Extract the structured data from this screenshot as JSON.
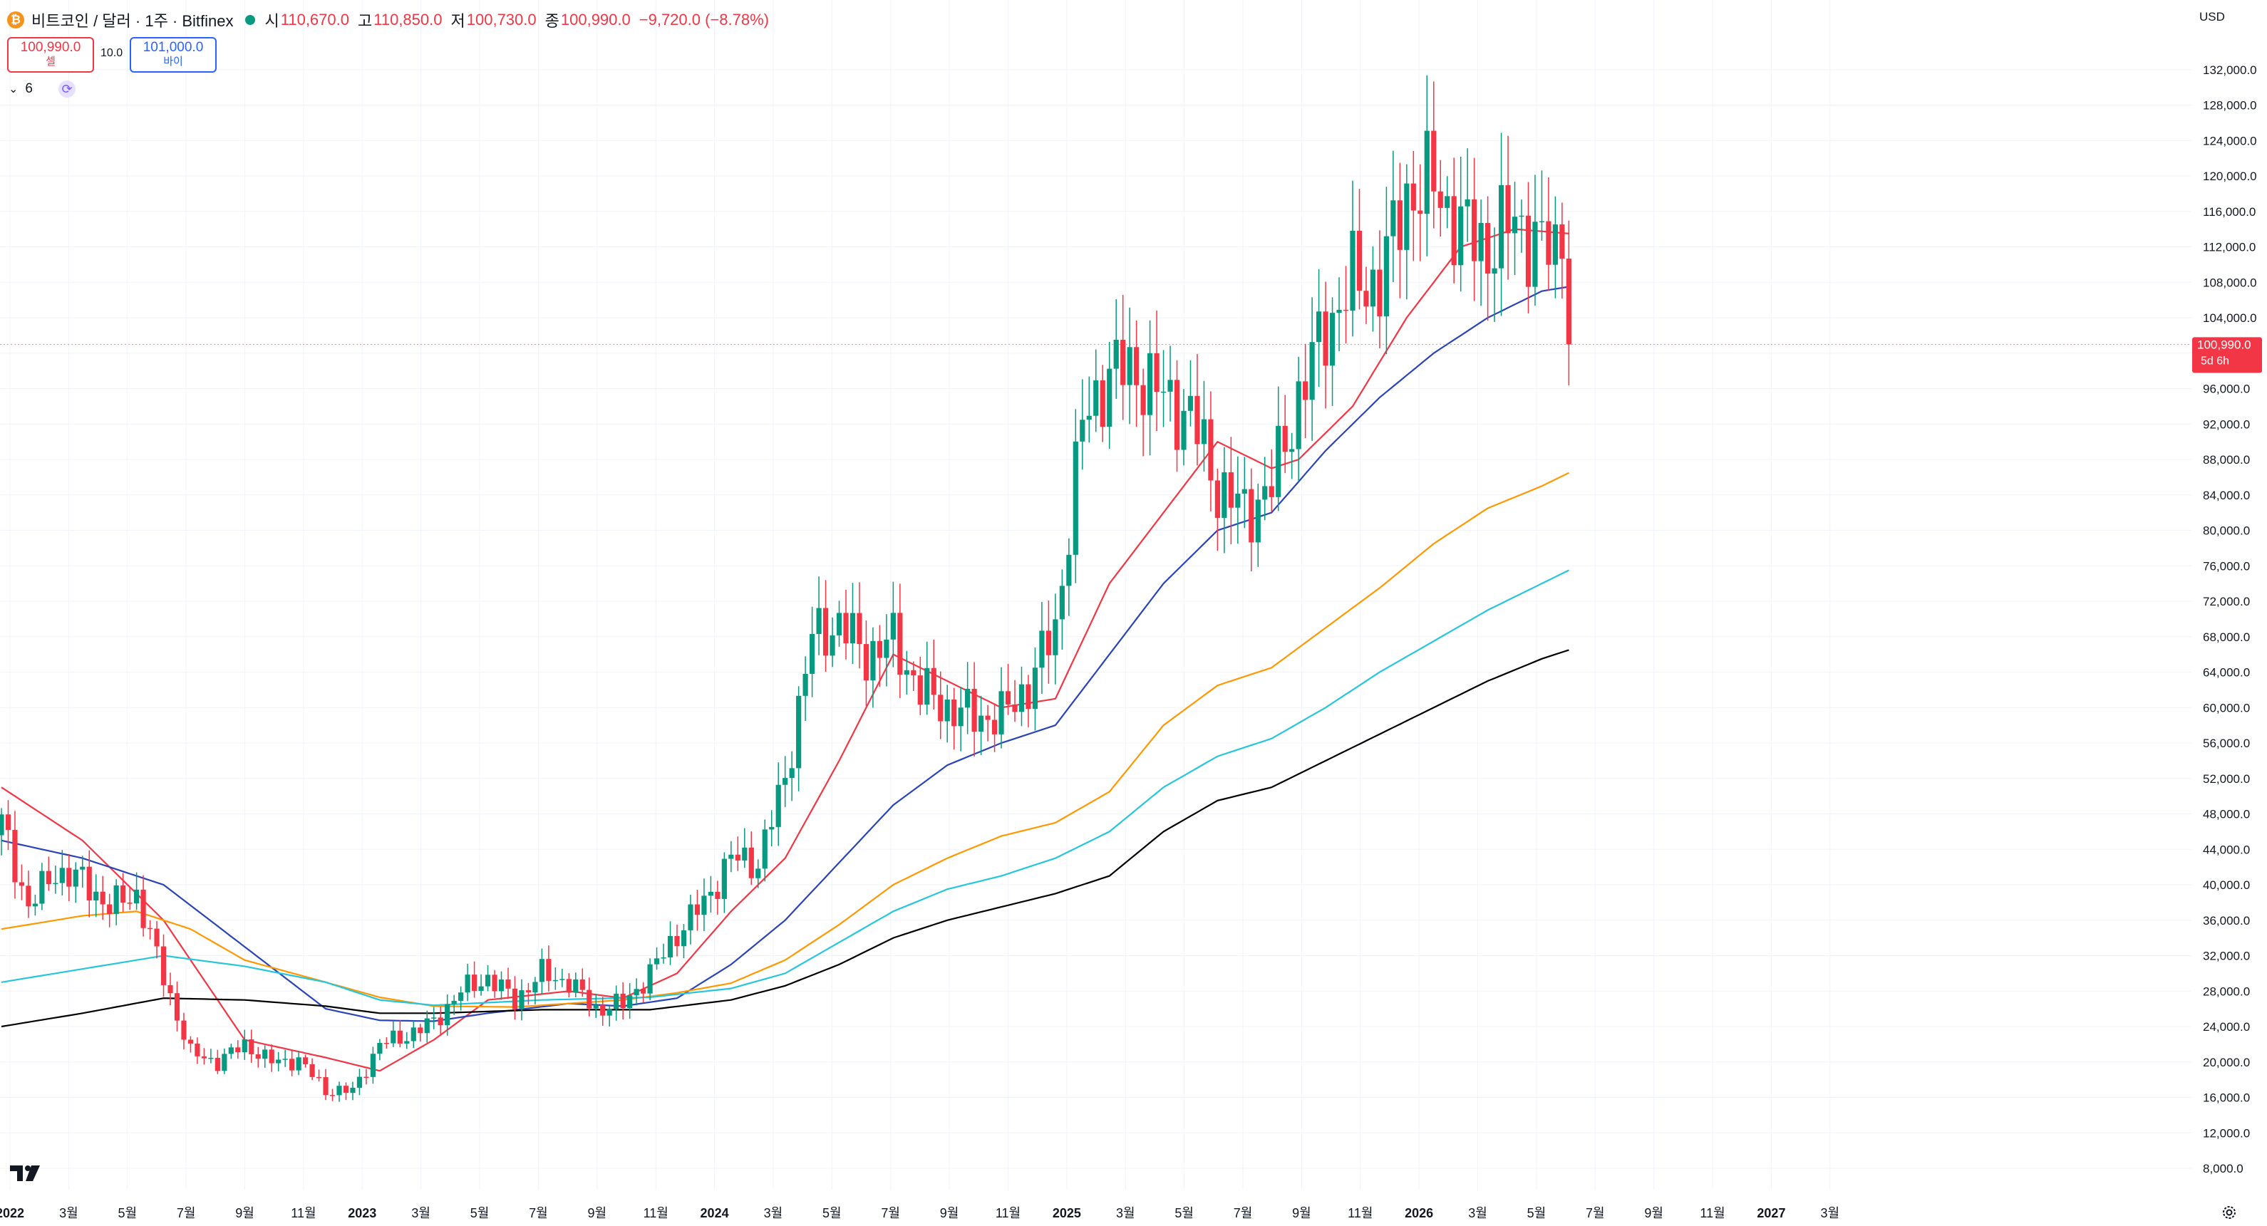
{
  "header": {
    "symbol": "비트코인 / 달러 · 1주 · Bitfinex",
    "open_label": "시",
    "open": "110,670.0",
    "high_label": "고",
    "high": "110,850.0",
    "low_label": "저",
    "low": "100,730.0",
    "close_label": "종",
    "close": "100,990.0",
    "change": "−9,720.0 (−8.78%)"
  },
  "trade": {
    "sell_price": "100,990.0",
    "sell_label": "셀",
    "spread": "10.0",
    "buy_price": "101,000.0",
    "buy_label": "바이"
  },
  "indicators": {
    "count": "6"
  },
  "currency": "USD",
  "price_tag": {
    "price": "100,990.0",
    "countdown": "5d 6h"
  },
  "colors": {
    "up": "#089981",
    "down": "#f23645",
    "ma20": "#f23645",
    "ma50": "#2a44b8",
    "ma100": "#ff9800",
    "ma150": "#26c6da",
    "ma200": "#000000"
  },
  "chart_data": {
    "type": "candlestick",
    "y_ticks": [
      "8,000.0",
      "12,000.0",
      "16,000.0",
      "20,000.0",
      "24,000.0",
      "28,000.0",
      "32,000.0",
      "36,000.0",
      "40,000.0",
      "44,000.0",
      "48,000.0",
      "52,000.0",
      "56,000.0",
      "60,000.0",
      "64,000.0",
      "68,000.0",
      "72,000.0",
      "76,000.0",
      "80,000.0",
      "84,000.0",
      "88,000.0",
      "92,000.0",
      "96,000.0",
      "100,000.0",
      "104,000.0",
      "108,000.0",
      "112,000.0",
      "116,000.0",
      "120,000.0",
      "124,000.0",
      "128,000.0",
      "132,000.0"
    ],
    "ylim": [
      4000,
      136000
    ],
    "x_ticks": [
      {
        "label": "2022",
        "bold": true
      },
      {
        "label": "3월"
      },
      {
        "label": "5월"
      },
      {
        "label": "7월"
      },
      {
        "label": "9월"
      },
      {
        "label": "11월"
      },
      {
        "label": "2023",
        "bold": true
      },
      {
        "label": "3월"
      },
      {
        "label": "5월"
      },
      {
        "label": "7월"
      },
      {
        "label": "9월"
      },
      {
        "label": "11월"
      },
      {
        "label": "2024",
        "bold": true
      },
      {
        "label": "3월"
      },
      {
        "label": "5월"
      },
      {
        "label": "7월"
      },
      {
        "label": "9월"
      },
      {
        "label": "11월"
      },
      {
        "label": "2025",
        "bold": true
      },
      {
        "label": "3월"
      },
      {
        "label": "5월"
      },
      {
        "label": "7월"
      },
      {
        "label": "9월"
      },
      {
        "label": "11월"
      },
      {
        "label": "2026",
        "bold": true
      },
      {
        "label": "3월"
      },
      {
        "label": "5월"
      },
      {
        "label": "7월"
      },
      {
        "label": "9월"
      },
      {
        "label": "11월"
      },
      {
        "label": "2027",
        "bold": true
      },
      {
        "label": "3월"
      }
    ],
    "price_anchors": [
      [
        0,
        47000
      ],
      [
        4,
        37500
      ],
      [
        8,
        41500
      ],
      [
        12,
        40500
      ],
      [
        16,
        37500
      ],
      [
        20,
        39000
      ],
      [
        24,
        29500
      ],
      [
        28,
        21000
      ],
      [
        32,
        20000
      ],
      [
        36,
        22000
      ],
      [
        40,
        20000
      ],
      [
        44,
        20200
      ],
      [
        48,
        16800
      ],
      [
        52,
        16700
      ],
      [
        56,
        22000
      ],
      [
        60,
        23000
      ],
      [
        64,
        24500
      ],
      [
        68,
        28000
      ],
      [
        72,
        29500
      ],
      [
        76,
        27000
      ],
      [
        80,
        30000
      ],
      [
        84,
        29000
      ],
      [
        88,
        26000
      ],
      [
        92,
        26500
      ],
      [
        96,
        30000
      ],
      [
        100,
        34500
      ],
      [
        104,
        38000
      ],
      [
        108,
        43000
      ],
      [
        112,
        42500
      ],
      [
        116,
        52000
      ],
      [
        120,
        68000
      ],
      [
        124,
        69500
      ],
      [
        128,
        66000
      ],
      [
        132,
        67500
      ],
      [
        136,
        62000
      ],
      [
        140,
        60000
      ],
      [
        144,
        59000
      ],
      [
        148,
        59000
      ],
      [
        152,
        62500
      ],
      [
        156,
        69000
      ],
      [
        160,
        92000
      ],
      [
        164,
        98000
      ],
      [
        168,
        98000
      ],
      [
        172,
        95000
      ],
      [
        176,
        93000
      ],
      [
        180,
        85000
      ],
      [
        184,
        82000
      ],
      [
        188,
        85000
      ],
      [
        192,
        95000
      ],
      [
        196,
        103000
      ],
      [
        200,
        108000
      ],
      [
        204,
        108000
      ],
      [
        208,
        118000
      ],
      [
        212,
        119000
      ],
      [
        216,
        114000
      ],
      [
        220,
        112000
      ],
      [
        224,
        115000
      ],
      [
        228,
        112000
      ],
      [
        231,
        110670
      ],
      [
        232,
        100990
      ]
    ],
    "moving_averages": [
      {
        "period": 20,
        "color": "#f23645",
        "anchors": [
          [
            0,
            51000
          ],
          [
            12,
            45000
          ],
          [
            24,
            36000
          ],
          [
            36,
            22500
          ],
          [
            48,
            20500
          ],
          [
            56,
            19000
          ],
          [
            64,
            22500
          ],
          [
            72,
            27000
          ],
          [
            84,
            28000
          ],
          [
            92,
            27200
          ],
          [
            100,
            30000
          ],
          [
            108,
            37000
          ],
          [
            116,
            43000
          ],
          [
            124,
            54000
          ],
          [
            132,
            66000
          ],
          [
            140,
            63000
          ],
          [
            148,
            60000
          ],
          [
            156,
            61000
          ],
          [
            164,
            74000
          ],
          [
            172,
            82000
          ],
          [
            180,
            90000
          ],
          [
            188,
            87000
          ],
          [
            192,
            88000
          ],
          [
            200,
            94000
          ],
          [
            208,
            104000
          ],
          [
            216,
            112000
          ],
          [
            224,
            114000
          ],
          [
            232,
            113500
          ]
        ]
      },
      {
        "period": 50,
        "color": "#2a44b8",
        "anchors": [
          [
            0,
            45000
          ],
          [
            12,
            43000
          ],
          [
            24,
            40000
          ],
          [
            36,
            33000
          ],
          [
            48,
            26000
          ],
          [
            56,
            24700
          ],
          [
            64,
            24600
          ],
          [
            72,
            25500
          ],
          [
            84,
            26600
          ],
          [
            92,
            26300
          ],
          [
            100,
            27200
          ],
          [
            108,
            31000
          ],
          [
            116,
            36000
          ],
          [
            124,
            42500
          ],
          [
            132,
            49000
          ],
          [
            140,
            53500
          ],
          [
            148,
            56000
          ],
          [
            156,
            58000
          ],
          [
            164,
            66000
          ],
          [
            172,
            74000
          ],
          [
            180,
            80000
          ],
          [
            188,
            82000
          ],
          [
            196,
            89000
          ],
          [
            204,
            95000
          ],
          [
            212,
            100000
          ],
          [
            220,
            104000
          ],
          [
            228,
            107000
          ],
          [
            232,
            107500
          ]
        ]
      },
      {
        "period": 100,
        "color": "#ff9800",
        "anchors": [
          [
            0,
            35000
          ],
          [
            12,
            36500
          ],
          [
            20,
            37000
          ],
          [
            28,
            35000
          ],
          [
            36,
            31500
          ],
          [
            48,
            29000
          ],
          [
            56,
            27300
          ],
          [
            64,
            26300
          ],
          [
            76,
            26200
          ],
          [
            92,
            27000
          ],
          [
            100,
            27800
          ],
          [
            108,
            28900
          ],
          [
            116,
            31500
          ],
          [
            124,
            35500
          ],
          [
            132,
            40000
          ],
          [
            140,
            43000
          ],
          [
            148,
            45500
          ],
          [
            156,
            47000
          ],
          [
            164,
            50500
          ],
          [
            172,
            58000
          ],
          [
            180,
            62500
          ],
          [
            188,
            64500
          ],
          [
            196,
            69000
          ],
          [
            204,
            73500
          ],
          [
            212,
            78500
          ],
          [
            220,
            82500
          ],
          [
            228,
            85000
          ],
          [
            232,
            86500
          ]
        ]
      },
      {
        "period": 150,
        "color": "#26c6da",
        "anchors": [
          [
            0,
            29000
          ],
          [
            12,
            30500
          ],
          [
            24,
            32000
          ],
          [
            36,
            30800
          ],
          [
            48,
            29000
          ],
          [
            56,
            27000
          ],
          [
            64,
            26400
          ],
          [
            80,
            27000
          ],
          [
            96,
            27300
          ],
          [
            108,
            28300
          ],
          [
            116,
            30000
          ],
          [
            124,
            33500
          ],
          [
            132,
            37000
          ],
          [
            140,
            39500
          ],
          [
            148,
            41000
          ],
          [
            156,
            43000
          ],
          [
            164,
            46000
          ],
          [
            172,
            51000
          ],
          [
            180,
            54500
          ],
          [
            188,
            56500
          ],
          [
            196,
            60000
          ],
          [
            204,
            64000
          ],
          [
            212,
            67500
          ],
          [
            220,
            71000
          ],
          [
            228,
            74000
          ],
          [
            232,
            75500
          ]
        ]
      },
      {
        "period": 200,
        "color": "#000000",
        "anchors": [
          [
            0,
            24000
          ],
          [
            12,
            25500
          ],
          [
            24,
            27200
          ],
          [
            36,
            27000
          ],
          [
            48,
            26300
          ],
          [
            56,
            25500
          ],
          [
            64,
            25500
          ],
          [
            80,
            25900
          ],
          [
            96,
            25900
          ],
          [
            108,
            27000
          ],
          [
            116,
            28600
          ],
          [
            124,
            31000
          ],
          [
            132,
            34000
          ],
          [
            140,
            36000
          ],
          [
            148,
            37500
          ],
          [
            156,
            39000
          ],
          [
            164,
            41000
          ],
          [
            172,
            46000
          ],
          [
            180,
            49500
          ],
          [
            188,
            51000
          ],
          [
            196,
            54000
          ],
          [
            204,
            57000
          ],
          [
            212,
            60000
          ],
          [
            220,
            63000
          ],
          [
            228,
            65500
          ],
          [
            232,
            66500
          ]
        ]
      }
    ],
    "last_price": 100990
  }
}
